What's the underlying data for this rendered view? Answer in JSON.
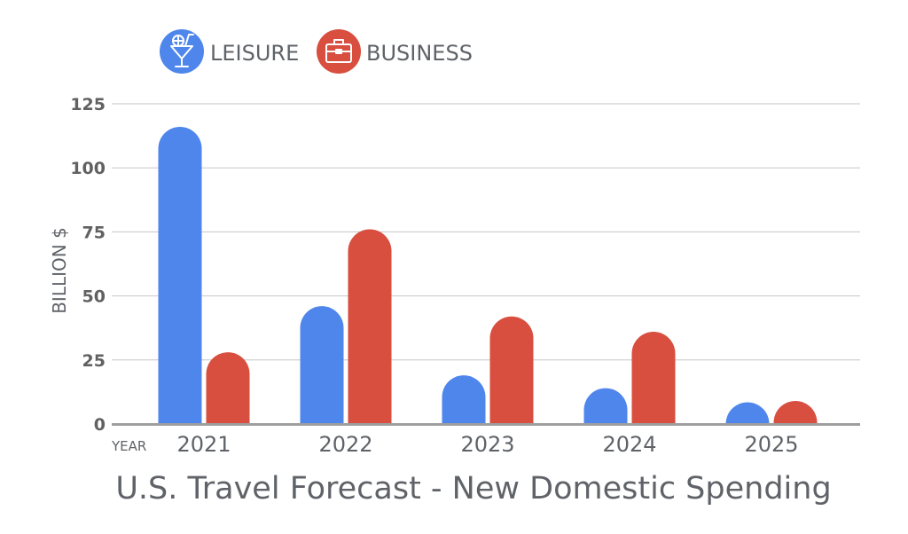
{
  "chart_data": {
    "type": "bar",
    "title": "U.S. Travel Forecast - New Domestic Spending",
    "xlabel": "YEAR",
    "ylabel": "BILLION $",
    "categories": [
      "2021",
      "2022",
      "2023",
      "2024",
      "2025"
    ],
    "series": [
      {
        "name": "LEISURE",
        "values": [
          116,
          46,
          19,
          14,
          7
        ],
        "color": "#4f86ec",
        "icon": "cocktail-glass-icon"
      },
      {
        "name": "BUSINESS",
        "values": [
          28,
          76,
          42,
          36,
          9
        ],
        "color": "#d84e3f",
        "icon": "briefcase-icon"
      }
    ],
    "ylim": [
      0,
      125
    ],
    "yticks": [
      0,
      25,
      50,
      75,
      100,
      125
    ],
    "grid": true,
    "legend": "top-left"
  }
}
